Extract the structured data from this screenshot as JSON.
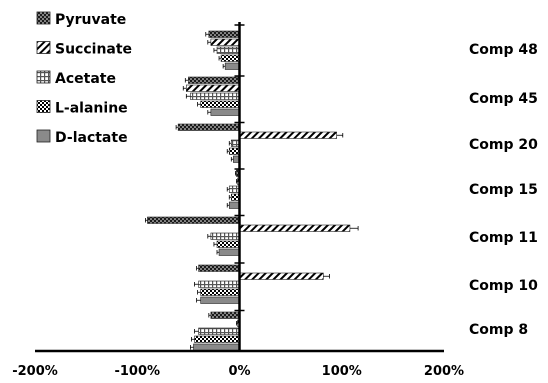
{
  "chart_data": {
    "type": "bar",
    "orientation": "horizontal",
    "categories": [
      "Comp 48",
      "Comp 45",
      "Comp 20",
      "Comp 15",
      "Comp 11",
      "Comp 10",
      "Comp 8"
    ],
    "series": [
      {
        "name": "Pyruvate",
        "values": [
          -30,
          -50,
          -60,
          -3,
          -90,
          -40,
          -28
        ],
        "error": [
          3,
          3,
          2,
          1,
          2,
          2,
          2
        ],
        "pattern": "dots"
      },
      {
        "name": "Succinate",
        "values": [
          -28,
          -52,
          95,
          -2,
          108,
          82,
          -2
        ],
        "error": [
          3,
          3,
          6,
          1,
          8,
          6,
          1
        ],
        "pattern": "diagonal"
      },
      {
        "name": "Acetate",
        "values": [
          -22,
          -48,
          -8,
          -10,
          -28,
          -40,
          -40
        ],
        "error": [
          3,
          4,
          2,
          2,
          3,
          4,
          4
        ],
        "pattern": "grid"
      },
      {
        "name": "L-alanine",
        "values": [
          -18,
          -38,
          -10,
          -8,
          -22,
          -38,
          -44
        ],
        "error": [
          2,
          3,
          2,
          2,
          3,
          3,
          3
        ],
        "pattern": "checker"
      },
      {
        "name": "D-lactate",
        "values": [
          -14,
          -28,
          -6,
          -10,
          -20,
          -38,
          -45
        ],
        "error": [
          2,
          3,
          2,
          2,
          2,
          4,
          3
        ],
        "pattern": "gray"
      }
    ],
    "xlim": [
      -200,
      200
    ],
    "xticks": [
      "-200%",
      "-100%",
      "0%",
      "100%",
      "200%"
    ],
    "legend_position": "top-left",
    "grid": false
  }
}
